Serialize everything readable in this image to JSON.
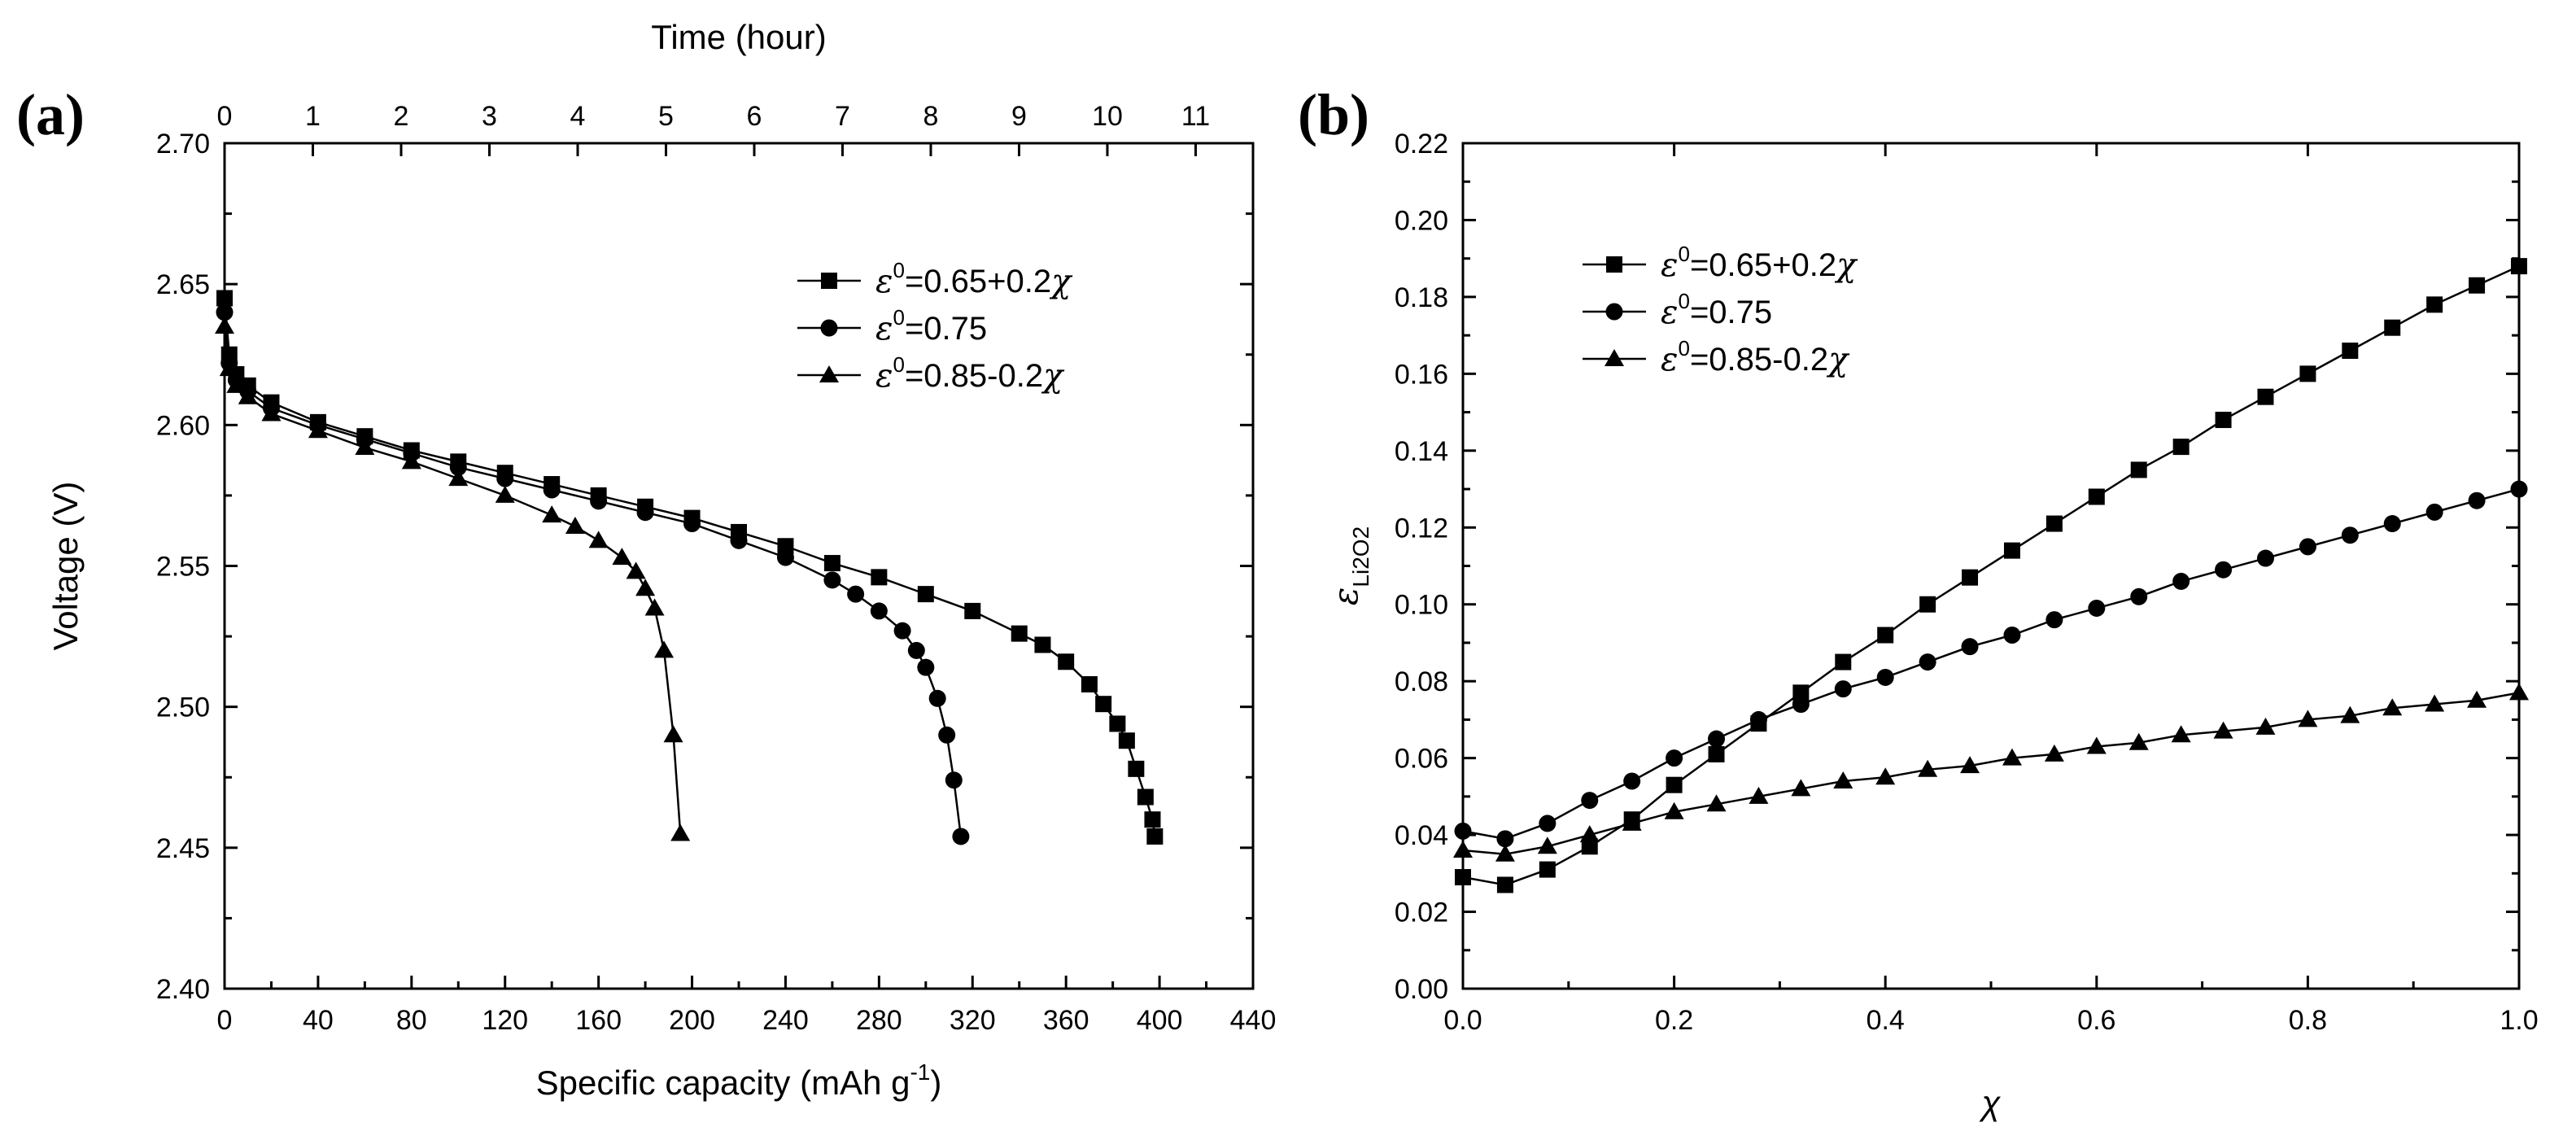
{
  "chart_data": [
    {
      "type": "line",
      "panel_label": "(a)",
      "title": "",
      "xlabel": "Specific capacity (mAh g",
      "xlabel_sup": "-1",
      "xlabel_close": ")",
      "ylabel": "Voltage (V)",
      "x2label": "Time (hour)",
      "xlim": [
        0,
        440
      ],
      "ylim": [
        2.4,
        2.7
      ],
      "x2lim": [
        0,
        11.65
      ],
      "xticks": [
        "0",
        "40",
        "80",
        "120",
        "160",
        "200",
        "240",
        "280",
        "320",
        "360",
        "400",
        "440"
      ],
      "yticks": [
        "2.40",
        "2.45",
        "2.50",
        "2.55",
        "2.60",
        "2.65",
        "2.70"
      ],
      "x2ticks": [
        "0",
        "1",
        "2",
        "3",
        "4",
        "5",
        "6",
        "7",
        "8",
        "9",
        "10",
        "11"
      ],
      "legend_position": "top-right",
      "legend": [
        {
          "symbol": "ε",
          "sup": "0",
          "text": "=0.65+0.2",
          "var": "χ",
          "marker": "square"
        },
        {
          "symbol": "ε",
          "sup": "0",
          "text": "=0.75",
          "var": "",
          "marker": "circle"
        },
        {
          "symbol": "ε",
          "sup": "0",
          "text": "=0.85-0.2",
          "var": "χ",
          "marker": "triangle"
        }
      ],
      "series": [
        {
          "name": "ε0=0.65+0.2χ",
          "marker": "square",
          "x": [
            0,
            2,
            5,
            10,
            20,
            40,
            60,
            80,
            100,
            120,
            140,
            160,
            180,
            200,
            220,
            240,
            260,
            280,
            300,
            320,
            340,
            350,
            360,
            370,
            376,
            382,
            386,
            390,
            394,
            397,
            398
          ],
          "y": [
            2.645,
            2.625,
            2.618,
            2.614,
            2.608,
            2.601,
            2.596,
            2.591,
            2.587,
            2.583,
            2.579,
            2.575,
            2.571,
            2.567,
            2.562,
            2.557,
            2.551,
            2.546,
            2.54,
            2.534,
            2.526,
            2.522,
            2.516,
            2.508,
            2.501,
            2.494,
            2.488,
            2.478,
            2.468,
            2.46,
            2.454
          ]
        },
        {
          "name": "ε0=0.75",
          "marker": "circle",
          "x": [
            0,
            2,
            5,
            10,
            20,
            40,
            60,
            80,
            100,
            120,
            140,
            160,
            180,
            200,
            220,
            240,
            260,
            270,
            280,
            290,
            296,
            300,
            305,
            309,
            312,
            315
          ],
          "y": [
            2.64,
            2.622,
            2.616,
            2.612,
            2.606,
            2.6,
            2.595,
            2.59,
            2.585,
            2.581,
            2.577,
            2.573,
            2.569,
            2.565,
            2.559,
            2.553,
            2.545,
            2.54,
            2.534,
            2.527,
            2.52,
            2.514,
            2.503,
            2.49,
            2.474,
            2.454
          ]
        },
        {
          "name": "ε0=0.85-0.2χ",
          "marker": "triangle",
          "x": [
            0,
            2,
            5,
            10,
            20,
            40,
            60,
            80,
            100,
            120,
            140,
            150,
            160,
            170,
            176,
            180,
            184,
            188,
            192,
            195
          ],
          "y": [
            2.635,
            2.62,
            2.614,
            2.61,
            2.604,
            2.598,
            2.592,
            2.587,
            2.581,
            2.575,
            2.568,
            2.564,
            2.559,
            2.553,
            2.548,
            2.542,
            2.535,
            2.52,
            2.49,
            2.455
          ]
        }
      ]
    },
    {
      "type": "line",
      "panel_label": "(b)",
      "title": "",
      "xlabel": "χ",
      "ylabel": "ε",
      "ylabel_sub": "Li2O2",
      "xlim": [
        0.0,
        1.0
      ],
      "ylim": [
        0.0,
        0.22
      ],
      "xticks": [
        "0.0",
        "0.2",
        "0.4",
        "0.6",
        "0.8",
        "1.0"
      ],
      "yticks": [
        "0.00",
        "0.02",
        "0.04",
        "0.06",
        "0.08",
        "0.10",
        "0.12",
        "0.14",
        "0.16",
        "0.18",
        "0.20",
        "0.22"
      ],
      "legend_position": "top-left",
      "legend": [
        {
          "symbol": "ε",
          "sup": "0",
          "text": "=0.65+0.2",
          "var": "χ",
          "marker": "square"
        },
        {
          "symbol": "ε",
          "sup": "0",
          "text": "=0.75",
          "var": "",
          "marker": "circle"
        },
        {
          "symbol": "ε",
          "sup": "0",
          "text": "=0.85-0.2",
          "var": "χ",
          "marker": "triangle"
        }
      ],
      "series": [
        {
          "name": "ε0=0.65+0.2χ",
          "marker": "square",
          "x": [
            0.0,
            0.04,
            0.08,
            0.12,
            0.16,
            0.2,
            0.24,
            0.28,
            0.32,
            0.36,
            0.4,
            0.44,
            0.48,
            0.52,
            0.56,
            0.6,
            0.64,
            0.68,
            0.72,
            0.76,
            0.8,
            0.84,
            0.88,
            0.92,
            0.96,
            1.0
          ],
          "y": [
            0.029,
            0.027,
            0.031,
            0.037,
            0.044,
            0.053,
            0.061,
            0.069,
            0.077,
            0.085,
            0.092,
            0.1,
            0.107,
            0.114,
            0.121,
            0.128,
            0.135,
            0.141,
            0.148,
            0.154,
            0.16,
            0.166,
            0.172,
            0.178,
            0.183,
            0.188
          ]
        },
        {
          "name": "ε0=0.75",
          "marker": "circle",
          "x": [
            0.0,
            0.04,
            0.08,
            0.12,
            0.16,
            0.2,
            0.24,
            0.28,
            0.32,
            0.36,
            0.4,
            0.44,
            0.48,
            0.52,
            0.56,
            0.6,
            0.64,
            0.68,
            0.72,
            0.76,
            0.8,
            0.84,
            0.88,
            0.92,
            0.96,
            1.0
          ],
          "y": [
            0.041,
            0.039,
            0.043,
            0.049,
            0.054,
            0.06,
            0.065,
            0.07,
            0.074,
            0.078,
            0.081,
            0.085,
            0.089,
            0.092,
            0.096,
            0.099,
            0.102,
            0.106,
            0.109,
            0.112,
            0.115,
            0.118,
            0.121,
            0.124,
            0.127,
            0.13
          ]
        },
        {
          "name": "ε0=0.85-0.2χ",
          "marker": "triangle",
          "x": [
            0.0,
            0.04,
            0.08,
            0.12,
            0.16,
            0.2,
            0.24,
            0.28,
            0.32,
            0.36,
            0.4,
            0.44,
            0.48,
            0.52,
            0.56,
            0.6,
            0.64,
            0.68,
            0.72,
            0.76,
            0.8,
            0.84,
            0.88,
            0.92,
            0.96,
            1.0
          ],
          "y": [
            0.036,
            0.035,
            0.037,
            0.04,
            0.043,
            0.046,
            0.048,
            0.05,
            0.052,
            0.054,
            0.055,
            0.057,
            0.058,
            0.06,
            0.061,
            0.063,
            0.064,
            0.066,
            0.067,
            0.068,
            0.07,
            0.071,
            0.073,
            0.074,
            0.075,
            0.077
          ]
        }
      ]
    }
  ]
}
